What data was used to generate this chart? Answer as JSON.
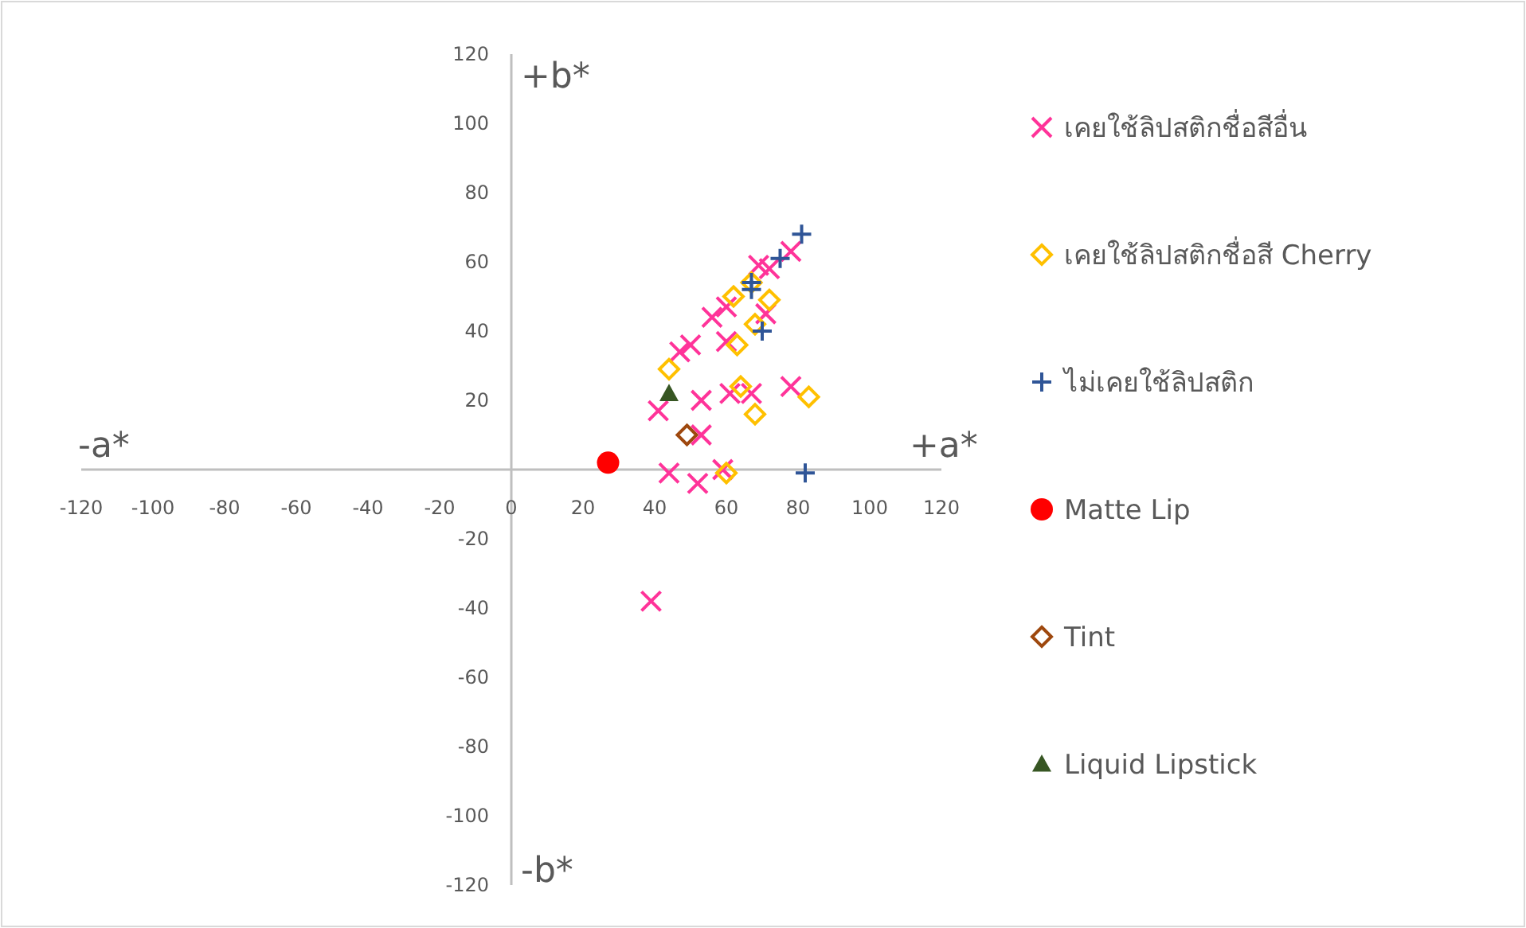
{
  "chart_data": {
    "type": "scatter",
    "xlim": [
      -120,
      120
    ],
    "ylim": [
      -120,
      120
    ],
    "xticks": [
      -120,
      -100,
      -80,
      -60,
      -40,
      -20,
      0,
      20,
      40,
      60,
      80,
      100,
      120
    ],
    "yticks": [
      -120,
      -100,
      -80,
      -60,
      -40,
      -20,
      20,
      40,
      60,
      80,
      100,
      120
    ],
    "annotations": [
      "+b*",
      "-b*",
      "-a*",
      "+a*"
    ],
    "grid": false,
    "legend": "right",
    "series": [
      {
        "name": "เคยใช้ลิปสติกชื่อสีอื่น",
        "color": "#ff3399",
        "marker": "x",
        "x": [
          41,
          53,
          61,
          67,
          78,
          53,
          44,
          52,
          59,
          39,
          47,
          50,
          56,
          60,
          60,
          null,
          72,
          69,
          71,
          78
        ],
        "values": [
          17,
          20,
          22,
          22,
          24,
          10,
          -1,
          -4,
          0,
          -38,
          34,
          36,
          44,
          47,
          37,
          null,
          58,
          59,
          45,
          63
        ]
      },
      {
        "name": "เคยใช้ลิปสติกชื่อสี Cherry",
        "color": "#ffc000",
        "marker": "diamond",
        "x": [
          44,
          62,
          72,
          67,
          68,
          63,
          64,
          68,
          83,
          60
        ],
        "values": [
          29,
          50,
          49,
          54,
          42,
          36,
          24,
          16,
          21,
          -1
        ]
      },
      {
        "name": "ไม่เคยใช้ลิปสติก",
        "color": "#2f5597",
        "marker": "cross",
        "x": [
          81,
          75,
          67,
          67,
          70,
          82
        ],
        "values": [
          68,
          61,
          54,
          52,
          40,
          -1
        ]
      },
      {
        "name": "Matte Lip",
        "color": "#ff0000",
        "marker": "circle",
        "x": [
          27
        ],
        "values": [
          2
        ]
      },
      {
        "name": "Tint",
        "color": "#9e480e",
        "marker": "diamond",
        "x": [
          49
        ],
        "values": [
          10
        ]
      },
      {
        "name": "Liquid Lipstick",
        "color": "#375623",
        "marker": "triangle",
        "x": [
          44
        ],
        "values": [
          22
        ]
      }
    ]
  }
}
